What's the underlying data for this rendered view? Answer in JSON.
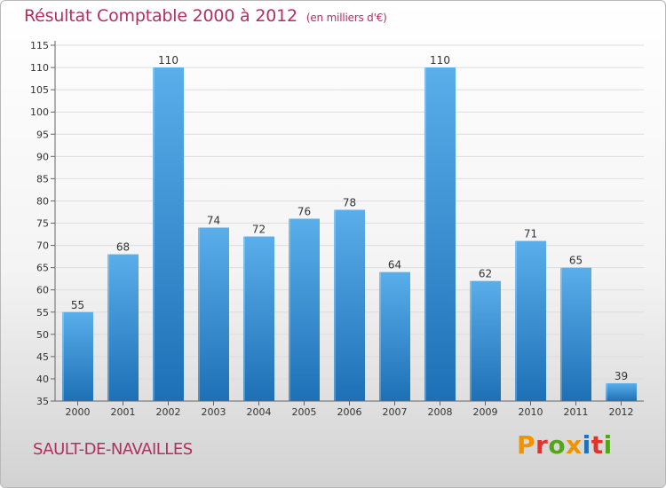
{
  "colors": {
    "title": "#b13060",
    "bar_top": "#5aaeea",
    "bar_bottom": "#1e70b6",
    "axis": "#666666",
    "grid": "#dddddd",
    "text": "#333333"
  },
  "footer": {
    "commune": "SAULT-DE-NAVAILLES",
    "brand": "Proxiti",
    "brand_colors": [
      "#f39200",
      "#e2322b",
      "#55a51c",
      "#f39200",
      "#1d71b8",
      "#e2322b",
      "#55a51c"
    ]
  },
  "chart_data": {
    "type": "bar",
    "title": "Résultat Comptable 2000 à 2012",
    "subtitle": "(en milliers d'€)",
    "xlabel": "",
    "ylabel": "",
    "categories": [
      "2000",
      "2001",
      "2002",
      "2003",
      "2004",
      "2005",
      "2006",
      "2007",
      "2008",
      "2009",
      "2010",
      "2011",
      "2012"
    ],
    "values": [
      55,
      68,
      110,
      74,
      72,
      76,
      78,
      64,
      110,
      62,
      71,
      65,
      39
    ],
    "data_labels": [
      "55",
      "68",
      "110",
      "74",
      "72",
      "76",
      "78",
      "64",
      "110",
      "62",
      "71",
      "65",
      "39"
    ],
    "ylim": [
      35,
      115
    ],
    "yticks": [
      35,
      40,
      45,
      50,
      55,
      60,
      65,
      70,
      75,
      80,
      85,
      90,
      95,
      100,
      105,
      110,
      115
    ],
    "grid": true,
    "legend": "none"
  }
}
